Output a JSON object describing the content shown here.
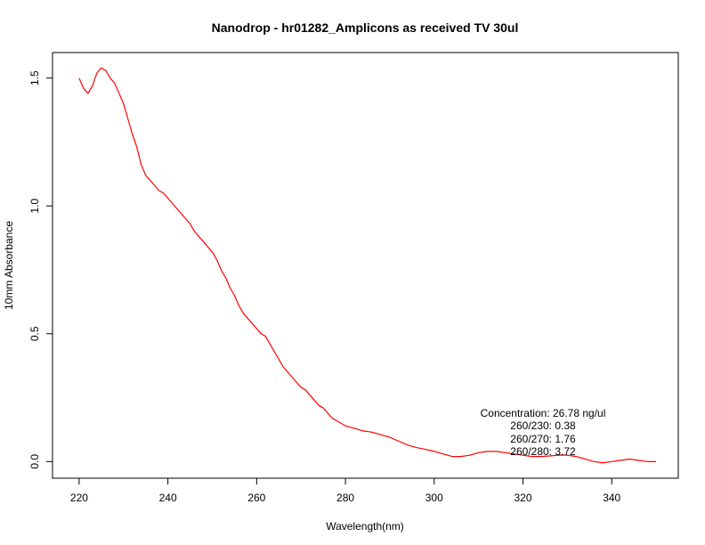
{
  "chart_data": {
    "type": "line",
    "title": "Nanodrop - hr01282_Amplicons as received TV 30ul",
    "xlabel": "Wavelength(nm)",
    "ylabel": "10mm Absorbance",
    "xlim": [
      214,
      355
    ],
    "ylim": [
      -0.065,
      1.6
    ],
    "xticks": [
      220,
      240,
      260,
      280,
      300,
      320,
      340
    ],
    "xtick_labels": [
      "220",
      "240",
      "260",
      "280",
      "300",
      "320",
      "340"
    ],
    "yticks": [
      0.0,
      0.5,
      1.0,
      1.5
    ],
    "ytick_labels": [
      "0.0",
      "0.5",
      "1.0",
      "1.5"
    ],
    "grid": false,
    "series": [
      {
        "color": "#ff0000",
        "x": [
          220,
          221,
          222,
          223,
          224,
          225,
          226,
          227,
          228,
          229,
          230,
          231,
          232,
          233,
          234,
          235,
          236,
          237,
          238,
          239,
          240,
          241,
          242,
          243,
          244,
          245,
          246,
          247,
          248,
          249,
          250,
          251,
          252,
          253,
          254,
          255,
          256,
          257,
          258,
          259,
          260,
          261,
          262,
          263,
          264,
          265,
          266,
          267,
          268,
          269,
          270,
          271,
          272,
          273,
          274,
          275,
          276,
          277,
          278,
          279,
          280,
          282,
          284,
          286,
          288,
          290,
          292,
          294,
          296,
          298,
          300,
          302,
          304,
          306,
          308,
          310,
          312,
          314,
          316,
          318,
          320,
          322,
          324,
          326,
          328,
          330,
          332,
          334,
          336,
          338,
          340,
          342,
          344,
          346,
          348,
          350
        ],
        "y": [
          1.5,
          1.46,
          1.44,
          1.47,
          1.52,
          1.54,
          1.53,
          1.5,
          1.48,
          1.44,
          1.4,
          1.34,
          1.28,
          1.23,
          1.16,
          1.12,
          1.1,
          1.08,
          1.06,
          1.05,
          1.03,
          1.01,
          0.99,
          0.97,
          0.95,
          0.93,
          0.9,
          0.88,
          0.86,
          0.84,
          0.82,
          0.79,
          0.75,
          0.72,
          0.68,
          0.65,
          0.61,
          0.58,
          0.56,
          0.54,
          0.52,
          0.5,
          0.49,
          0.46,
          0.43,
          0.4,
          0.37,
          0.35,
          0.33,
          0.31,
          0.29,
          0.28,
          0.26,
          0.24,
          0.22,
          0.21,
          0.19,
          0.17,
          0.16,
          0.15,
          0.14,
          0.13,
          0.12,
          0.115,
          0.105,
          0.095,
          0.08,
          0.065,
          0.055,
          0.048,
          0.04,
          0.03,
          0.02,
          0.02,
          0.025,
          0.035,
          0.04,
          0.04,
          0.035,
          0.03,
          0.025,
          0.02,
          0.02,
          0.022,
          0.025,
          0.025,
          0.02,
          0.01,
          0.0,
          -0.005,
          0.0,
          0.005,
          0.01,
          0.005,
          0.0,
          0.0
        ]
      }
    ],
    "annotations": [
      "Concentration: 26.78 ng/ul",
      "260/230: 0.38",
      "260/270: 1.76",
      "260/280: 3.72"
    ]
  }
}
